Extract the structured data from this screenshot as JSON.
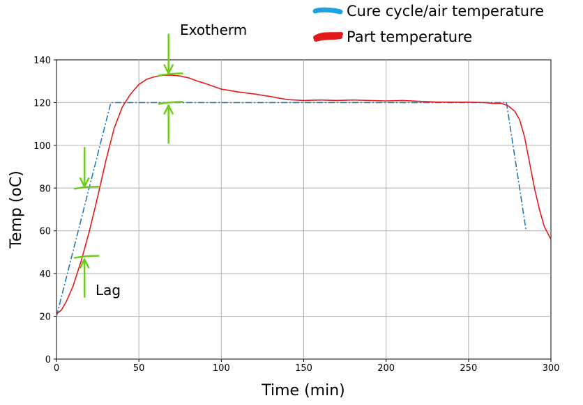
{
  "chart_data": {
    "type": "line",
    "xlabel": "Time (min)",
    "ylabel": "Temp (oC)",
    "xlim": [
      0,
      300
    ],
    "ylim": [
      0,
      140
    ],
    "xticks": [
      0,
      50,
      100,
      150,
      200,
      250,
      300
    ],
    "yticks": [
      0,
      20,
      40,
      60,
      80,
      100,
      120,
      140
    ],
    "grid": true,
    "legend_position": "top-right",
    "series": [
      {
        "name": "Cure cycle/air temperature",
        "color": "#1f77b4",
        "style": "dashdot",
        "legend_color": "#1aa3e0",
        "x": [
          0,
          33,
          273,
          285
        ],
        "y": [
          20,
          120,
          120,
          60
        ]
      },
      {
        "name": "Part temperature",
        "color": "#e31a1c",
        "style": "solid",
        "legend_color": "#e31a1c",
        "x": [
          0,
          3,
          6,
          10,
          15,
          20,
          25,
          30,
          35,
          40,
          45,
          50,
          55,
          60,
          65,
          70,
          75,
          80,
          85,
          90,
          100,
          110,
          120,
          130,
          140,
          150,
          160,
          170,
          180,
          190,
          200,
          210,
          220,
          230,
          240,
          250,
          260,
          265,
          270,
          274,
          278,
          281,
          284,
          287,
          290,
          293,
          296,
          300
        ],
        "y": [
          21,
          23,
          27,
          34,
          46,
          60,
          76,
          93,
          108,
          118,
          124,
          128.5,
          131,
          132.2,
          132.8,
          132.8,
          132.4,
          131.6,
          130.2,
          129,
          126.3,
          125,
          124,
          122.8,
          121.4,
          121,
          121.2,
          121,
          121.2,
          121,
          120.8,
          121,
          120.6,
          120.3,
          120.2,
          120.2,
          120,
          119.6,
          119.6,
          118.5,
          116,
          112,
          104,
          92,
          80,
          70,
          62,
          56
        ]
      }
    ],
    "annotations": [
      {
        "label": "Exotherm",
        "target": [
          68,
          133
        ],
        "kind": "arrow-down"
      },
      {
        "label": "",
        "target": [
          68,
          120
        ],
        "kind": "arrow-up"
      },
      {
        "label": "",
        "target": [
          17,
          80
        ],
        "kind": "arrow-down"
      },
      {
        "label": "Lag",
        "target": [
          17,
          48
        ],
        "kind": "arrow-up"
      }
    ]
  }
}
